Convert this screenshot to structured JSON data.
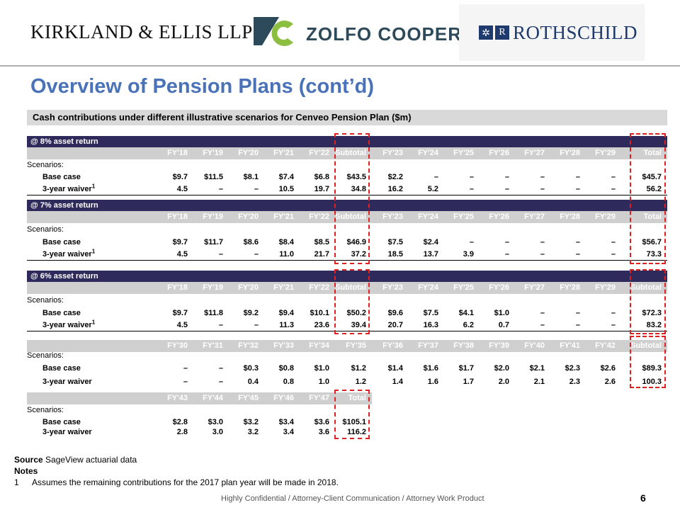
{
  "logos": {
    "kirkland": "KIRKLAND & ELLIS LLP",
    "zolfo": "ZOLFO COOPER",
    "rothschild": "ROTHSCHILD",
    "zc_colors": {
      "dark": "#2d4a5a",
      "green": "#8cbf3f"
    },
    "roth_color": "#1f3a6d"
  },
  "title": "Overview of Pension Plans (cont’d)",
  "section_header": "Cash contributions under different illustrative scenarios for Cenveo Pension Plan ($m)",
  "blocks": {
    "b8": {
      "band": "@ 8% asset return",
      "headers": [
        "FY'18",
        "FY'19",
        "FY'20",
        "FY'21",
        "FY'22",
        "Subtotal",
        "FY'23",
        "FY'24",
        "FY'25",
        "FY'26",
        "FY'27",
        "FY'28",
        "FY'29",
        "Total"
      ],
      "scenarios_label": "Scenarios:",
      "base_label": "Base case",
      "waiver_label": "3-year waiver",
      "base": [
        "$9.7",
        "$11.5",
        "$8.1",
        "$7.4",
        "$6.8",
        "$43.5",
        "$2.2",
        "–",
        "–",
        "–",
        "–",
        "–",
        "–",
        "$45.7"
      ],
      "waiver": [
        "4.5",
        "–",
        "–",
        "10.5",
        "19.7",
        "34.8",
        "16.2",
        "5.2",
        "–",
        "–",
        "–",
        "–",
        "–",
        "56.2"
      ]
    },
    "b7": {
      "band": "@ 7% asset return",
      "headers": [
        "FY'18",
        "FY'19",
        "FY'20",
        "FY'21",
        "FY'22",
        "Subtotal",
        "FY'23",
        "FY'24",
        "FY'25",
        "FY'26",
        "FY'27",
        "FY'28",
        "FY'29",
        "Total"
      ],
      "scenarios_label": "Scenarios:",
      "base_label": "Base case",
      "waiver_label": "3-year waiver",
      "base": [
        "$9.7",
        "$11.7",
        "$8.6",
        "$8.4",
        "$8.5",
        "$46.9",
        "$7.5",
        "$2.4",
        "–",
        "–",
        "–",
        "–",
        "–",
        "$56.7"
      ],
      "waiver": [
        "4.5",
        "–",
        "–",
        "11.0",
        "21.7",
        "37.2",
        "18.5",
        "13.7",
        "3.9",
        "–",
        "–",
        "–",
        "–",
        "73.3"
      ]
    },
    "b6": {
      "band": "@ 6% asset return",
      "headers": [
        "FY'18",
        "FY'19",
        "FY'20",
        "FY'21",
        "FY'22",
        "Subtotal",
        "FY'23",
        "FY'24",
        "FY'25",
        "FY'26",
        "FY'27",
        "FY'28",
        "FY'29",
        "Subtotal"
      ],
      "scenarios_label": "Scenarios:",
      "base_label": "Base case",
      "waiver_label": "3-year waiver",
      "base": [
        "$9.7",
        "$11.8",
        "$9.2",
        "$9.4",
        "$10.1",
        "$50.2",
        "$9.6",
        "$7.5",
        "$4.1",
        "$1.0",
        "–",
        "–",
        "–",
        "$72.3"
      ],
      "waiver": [
        "4.5",
        "–",
        "–",
        "11.3",
        "23.6",
        "39.4",
        "20.7",
        "16.3",
        "6.2",
        "0.7",
        "–",
        "–",
        "–",
        "83.2"
      ]
    },
    "b6b": {
      "headers": [
        "FY'30",
        "FY'31",
        "FY'32",
        "FY'33",
        "FY'34",
        "FY'35",
        "FY'36",
        "FY'37",
        "FY'38",
        "FY'39",
        "FY'40",
        "FY'41",
        "FY'42",
        "Subtotal"
      ],
      "scenarios_label": "Scenarios:",
      "base_label": "Base case",
      "waiver_label": "3-year waiver",
      "base": [
        "–",
        "–",
        "$0.3",
        "$0.8",
        "$1.0",
        "$1.2",
        "$1.4",
        "$1.6",
        "$1.7",
        "$2.0",
        "$2.1",
        "$2.3",
        "$2.6",
        "$89.3"
      ],
      "waiver": [
        "–",
        "–",
        "0.4",
        "0.8",
        "1.0",
        "1.2",
        "1.4",
        "1.6",
        "1.7",
        "2.0",
        "2.1",
        "2.3",
        "2.6",
        "100.3"
      ]
    },
    "b6c": {
      "headers": [
        "FY'43",
        "FY'44",
        "FY'45",
        "FY'46",
        "FY'47",
        "Total"
      ],
      "scenarios_label": "Scenarios:",
      "base_label": "Base case",
      "waiver_label": "3-year waiver",
      "base": [
        "$2.8",
        "$3.0",
        "$3.2",
        "$3.4",
        "$3.6",
        "$105.1"
      ],
      "waiver": [
        "2.8",
        "3.0",
        "3.2",
        "3.4",
        "3.6",
        "116.2"
      ]
    }
  },
  "footnote_marker": "1",
  "footer": {
    "source_label": "Source",
    "source_text": "SageView actuarial data",
    "notes_label": "Notes",
    "note_num": "1",
    "note_text": "Assumes the remaining contributions for the 2017 plan year will be made in 2018.",
    "confidential": "Highly Confidential / Attorney-Client Communication / Attorney Work Product",
    "page_number": "6"
  }
}
